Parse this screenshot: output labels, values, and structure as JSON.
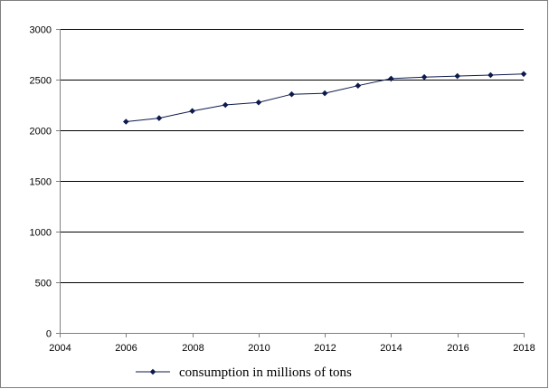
{
  "chart_data": {
    "type": "line",
    "x": [
      2006,
      2007,
      2008,
      2009,
      2010,
      2011,
      2012,
      2013,
      2014,
      2015,
      2016,
      2017,
      2018
    ],
    "series": [
      {
        "name": "consumption in millions of tons",
        "values": [
          2085,
          2120,
          2190,
          2250,
          2275,
          2355,
          2365,
          2440,
          2510,
          2525,
          2535,
          2545,
          2555
        ],
        "color": "#0d1a4d",
        "marker": "diamond"
      }
    ],
    "xlim": [
      2004,
      2018
    ],
    "ylim": [
      0,
      3000
    ],
    "xticks": [
      "2004",
      "2006",
      "2008",
      "2010",
      "2012",
      "2014",
      "2016",
      "2018"
    ],
    "yticks": [
      "0",
      "500",
      "1000",
      "1500",
      "2000",
      "2500",
      "3000"
    ],
    "grid": "horizontal",
    "legend_position": "bottom",
    "title": "",
    "xlabel": "",
    "ylabel": ""
  }
}
